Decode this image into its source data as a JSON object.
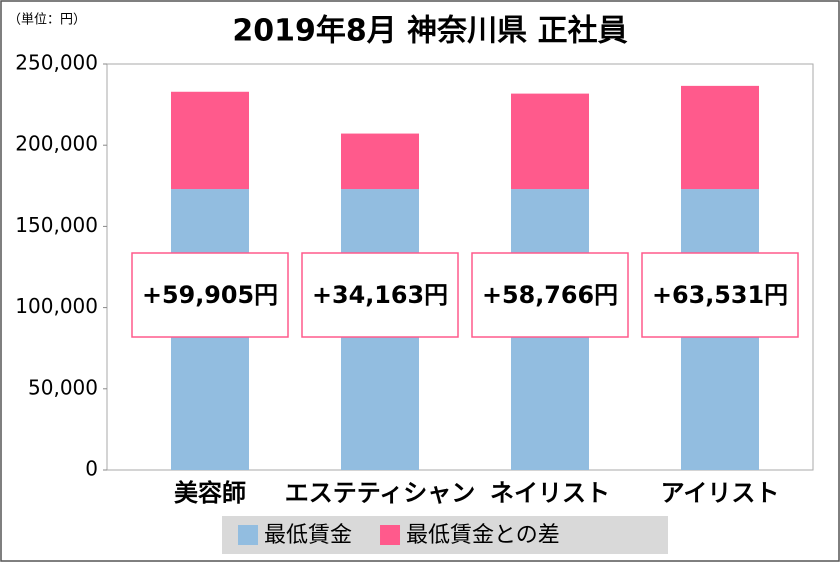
{
  "chart_data": {
    "type": "bar",
    "stacked": true,
    "title": "2019年8月 神奈川県 正社員",
    "unit_label": "（単位：円）",
    "categories": [
      "美容師",
      "エステティシャン",
      "ネイリスト",
      "アイリスト"
    ],
    "series": [
      {
        "name": "最低賃金",
        "color": "#92bde0",
        "values": [
          173000,
          173000,
          173000,
          173000
        ]
      },
      {
        "name": "最低賃金との差",
        "color": "#ff5a8c",
        "values": [
          59905,
          34163,
          58766,
          63531
        ],
        "value_labels": [
          "+59,905円",
          "+34,163円",
          "+58,766円",
          "+63,531円"
        ]
      }
    ],
    "ylim": [
      0,
      250000
    ],
    "yticks": [
      0,
      {
        "value": 50000,
        "label": "50,000"
      },
      {
        "value": 100000,
        "label": "100,000"
      },
      {
        "value": 150000,
        "label": "150,000"
      },
      {
        "value": 200000,
        "label": "200,000"
      },
      {
        "value": 250000,
        "label": "250,000"
      }
    ],
    "grid": false
  }
}
